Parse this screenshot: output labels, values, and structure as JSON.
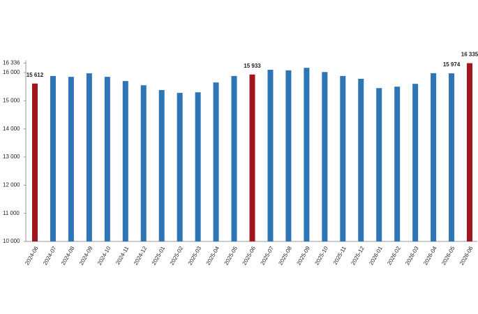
{
  "chart_data": {
    "type": "bar",
    "categories": [
      "2024-06",
      "2024-07",
      "2024-08",
      "2024-09",
      "2024-10",
      "2024-11",
      "2024-12",
      "2025-01",
      "2025-02",
      "2025-03",
      "2025-04",
      "2025-05",
      "2025-06",
      "2025-07",
      "2025-08",
      "2025-09",
      "2025-10",
      "2025-11",
      "2025-12",
      "2026-01",
      "2026-02",
      "2026-03",
      "2026-04",
      "2026-05",
      "2026-06"
    ],
    "values": [
      15612,
      15880,
      15850,
      15975,
      15850,
      15700,
      15550,
      15380,
      15280,
      15300,
      15650,
      15880,
      15933,
      16100,
      16080,
      16170,
      16020,
      15880,
      15780,
      15450,
      15500,
      15600,
      15980,
      15974,
      16335
    ],
    "value_labels": [
      "15 612",
      null,
      null,
      null,
      null,
      null,
      null,
      null,
      null,
      null,
      null,
      null,
      "15 933",
      null,
      null,
      null,
      null,
      null,
      null,
      null,
      null,
      null,
      null,
      "15 974",
      "16 335"
    ],
    "colors": [
      "#a0161d",
      "#2e75b6",
      "#2e75b6",
      "#2e75b6",
      "#2e75b6",
      "#2e75b6",
      "#2e75b6",
      "#2e75b6",
      "#2e75b6",
      "#2e75b6",
      "#2e75b6",
      "#2e75b6",
      "#a0161d",
      "#2e75b6",
      "#2e75b6",
      "#2e75b6",
      "#2e75b6",
      "#2e75b6",
      "#2e75b6",
      "#2e75b6",
      "#2e75b6",
      "#2e75b6",
      "#2e75b6",
      "#2e75b6",
      "#a0161d"
    ],
    "ylim": [
      10000,
      16336
    ],
    "yticks": [
      {
        "value": 10000,
        "label": "10 000"
      },
      {
        "value": 11000,
        "label": "11 000"
      },
      {
        "value": 12000,
        "label": "12 000"
      },
      {
        "value": 13000,
        "label": "13 000"
      },
      {
        "value": 14000,
        "label": "14 000"
      },
      {
        "value": 15000,
        "label": "15 000"
      },
      {
        "value": 16000,
        "label": "16 000"
      },
      {
        "value": 16336,
        "label": "16 336"
      }
    ],
    "grid": false
  }
}
